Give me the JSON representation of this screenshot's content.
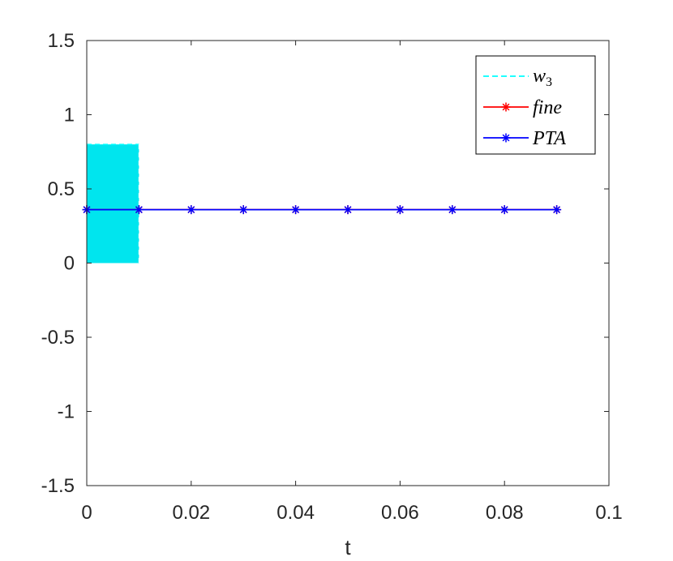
{
  "chart_data": {
    "type": "line",
    "title": "",
    "xlabel": "t",
    "ylabel": "",
    "xlim": [
      0,
      0.1
    ],
    "ylim": [
      -1.5,
      1.5
    ],
    "xticks": [
      0,
      0.02,
      0.04,
      0.06,
      0.08,
      0.1
    ],
    "xtick_labels": [
      "0",
      "0.02",
      "0.04",
      "0.06",
      "0.08",
      "0.1"
    ],
    "yticks": [
      -1.5,
      -1,
      -0.5,
      0,
      0.5,
      1,
      1.5
    ],
    "ytick_labels": [
      "-1.5",
      "-1",
      "-0.5",
      "0",
      "0.5",
      "1",
      "1.5"
    ],
    "grid": false,
    "legend_position": "top-right",
    "series": [
      {
        "name": "w3",
        "legend_main": "w",
        "legend_sub": "3",
        "style": "dashed-fill",
        "color": "#00FFFF",
        "fill_color": "#00E5EE",
        "x_range": [
          0,
          0.01
        ],
        "y_range": [
          0,
          0.8
        ]
      },
      {
        "name": "fine",
        "style": "line-star",
        "color": "#FF0000",
        "x": [
          0,
          0.01,
          0.02,
          0.03,
          0.04,
          0.05,
          0.06,
          0.07,
          0.08,
          0.09
        ],
        "y": [
          0.36,
          0.36,
          0.36,
          0.36,
          0.36,
          0.36,
          0.36,
          0.36,
          0.36,
          0.36
        ]
      },
      {
        "name": "PTA",
        "style": "line-star",
        "color": "#0000FF",
        "x": [
          0,
          0.01,
          0.02,
          0.03,
          0.04,
          0.05,
          0.06,
          0.07,
          0.08,
          0.09
        ],
        "y": [
          0.36,
          0.36,
          0.36,
          0.36,
          0.36,
          0.36,
          0.36,
          0.36,
          0.36,
          0.36
        ]
      }
    ]
  }
}
